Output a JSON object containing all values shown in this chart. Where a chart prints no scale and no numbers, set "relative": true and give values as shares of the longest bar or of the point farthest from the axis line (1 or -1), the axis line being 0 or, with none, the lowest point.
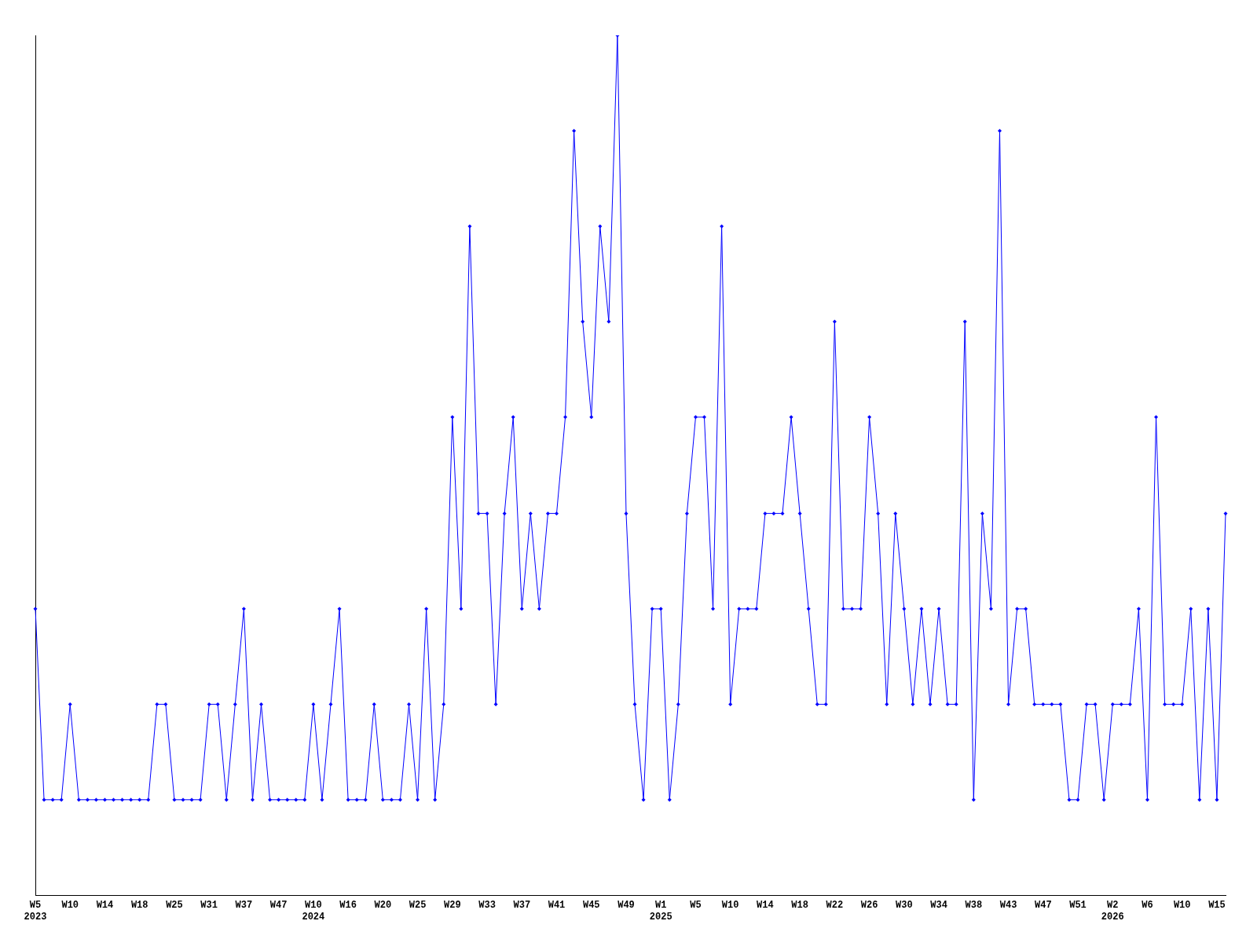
{
  "chart_data": {
    "type": "line",
    "relative": true,
    "marker": "diamond",
    "grid": false,
    "legend": false,
    "categories": [
      "W5\n2023",
      null,
      null,
      null,
      "W10",
      null,
      null,
      null,
      "W14",
      null,
      null,
      null,
      "W18",
      null,
      null,
      null,
      "W25",
      null,
      null,
      null,
      "W31",
      null,
      null,
      null,
      "W37",
      null,
      null,
      null,
      "W47",
      null,
      null,
      null,
      "W10\n2024",
      null,
      null,
      null,
      "W16",
      null,
      null,
      null,
      "W20",
      null,
      null,
      null,
      "W25",
      null,
      null,
      null,
      "W29",
      null,
      null,
      null,
      "W33",
      null,
      null,
      null,
      "W37",
      null,
      null,
      null,
      "W41",
      null,
      null,
      null,
      "W45",
      null,
      null,
      null,
      "W49",
      null,
      null,
      null,
      "W1\n2025",
      null,
      null,
      null,
      "W5",
      null,
      null,
      null,
      "W10",
      null,
      null,
      null,
      "W14",
      null,
      null,
      null,
      "W18",
      null,
      null,
      null,
      "W22",
      null,
      null,
      null,
      "W26",
      null,
      null,
      null,
      "W30",
      null,
      null,
      null,
      "W34",
      null,
      null,
      null,
      "W38",
      null,
      null,
      null,
      "W43",
      null,
      null,
      null,
      "W47",
      null,
      null,
      null,
      "W51",
      null,
      null,
      null,
      "W2\n2026",
      null,
      null,
      null,
      "W6",
      null,
      null,
      null,
      "W10",
      null,
      null,
      null,
      "W15",
      null
    ],
    "series": [
      {
        "color": "#0000ff",
        "values": [
          0.333,
          0.111,
          0.111,
          0.111,
          0.222,
          0.111,
          0.111,
          0.111,
          0.111,
          0.111,
          0.111,
          0.111,
          0.111,
          0.111,
          0.222,
          0.222,
          0.111,
          0.111,
          0.111,
          0.111,
          0.222,
          0.222,
          0.111,
          0.222,
          0.333,
          0.111,
          0.222,
          0.111,
          0.111,
          0.111,
          0.111,
          0.111,
          0.222,
          0.111,
          0.222,
          0.333,
          0.111,
          0.111,
          0.111,
          0.222,
          0.111,
          0.111,
          0.111,
          0.222,
          0.111,
          0.333,
          0.111,
          0.222,
          0.556,
          0.333,
          0.778,
          0.444,
          0.444,
          0.222,
          0.444,
          0.556,
          0.333,
          0.444,
          0.333,
          0.444,
          0.444,
          0.556,
          0.889,
          0.667,
          0.556,
          0.778,
          0.667,
          1,
          0.444,
          0.222,
          0.111,
          0.333,
          0.333,
          0.111,
          0.222,
          0.444,
          0.556,
          0.556,
          0.333,
          0.778,
          0.222,
          0.333,
          0.333,
          0.333,
          0.444,
          0.444,
          0.444,
          0.556,
          0.444,
          0.333,
          0.222,
          0.222,
          0.667,
          0.333,
          0.333,
          0.333,
          0.556,
          0.444,
          0.222,
          0.444,
          0.333,
          0.222,
          0.333,
          0.222,
          0.333,
          0.222,
          0.222,
          0.667,
          0.111,
          0.444,
          0.333,
          0.889,
          0.222,
          0.333,
          0.333,
          0.222,
          0.222,
          0.222,
          0.222,
          0.111,
          0.111,
          0.222,
          0.222,
          0.111,
          0.222,
          0.222,
          0.222,
          0.333,
          0.111,
          0.556,
          0.222,
          0.222,
          0.222,
          0.333,
          0.111,
          0.333,
          0.111,
          0.444
        ]
      }
    ]
  }
}
